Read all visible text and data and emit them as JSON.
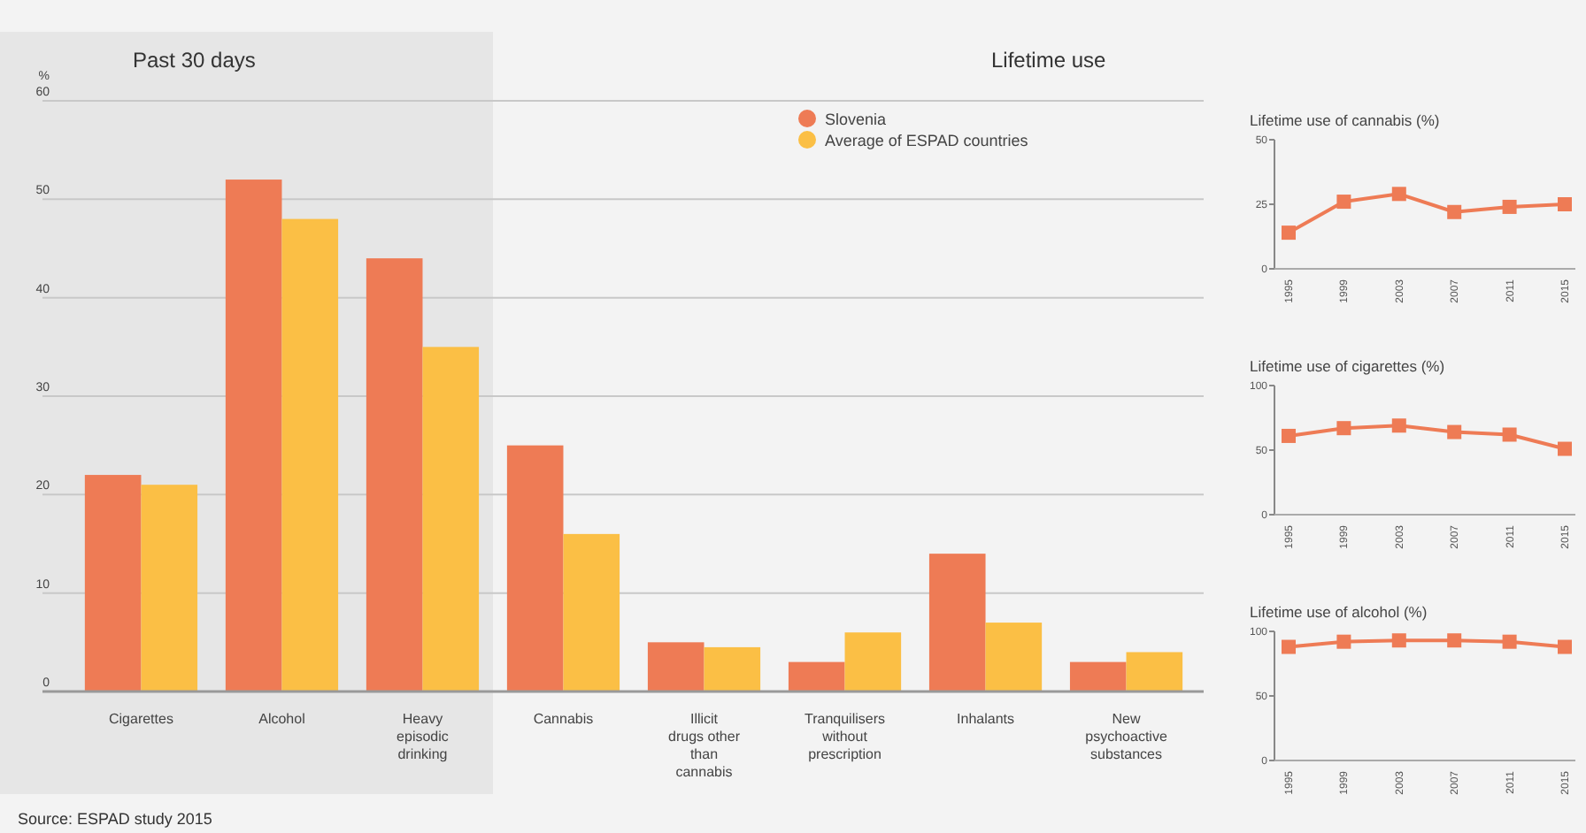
{
  "chart_data": [
    {
      "type": "bar",
      "ylabel": "%",
      "categories": [
        "Cigarettes",
        "Alcohol",
        "Heavy episodic drinking",
        "Cannabis",
        "Illicit drugs other than cannabis",
        "Tranquilisers without prescription",
        "Inhalants",
        "New psychoactive substances"
      ],
      "series": [
        {
          "name": "Slovenia",
          "color": "#ee7b55",
          "values": [
            22,
            52,
            44,
            25,
            5,
            3,
            14,
            3
          ]
        },
        {
          "name": "Average of ESPAD countries",
          "color": "#fbbf45",
          "values": [
            21,
            48,
            35,
            16,
            4.5,
            6,
            7,
            4
          ]
        }
      ],
      "ylim": [
        0,
        60
      ],
      "yticks": [
        0,
        10,
        20,
        30,
        40,
        50,
        60
      ],
      "grid": "y",
      "legend": "top right",
      "annotations": [
        "Past 30 days",
        "Lifetime use",
        "Source: ESPAD study 2015"
      ]
    },
    {
      "type": "line",
      "title": "Lifetime use of cannabis (%)",
      "categories": [
        "1995",
        "1999",
        "2003",
        "2007",
        "2011",
        "2015"
      ],
      "series": [
        {
          "color": "#ee7b55",
          "values": [
            14,
            26,
            29,
            22,
            24,
            25
          ]
        }
      ],
      "ylim": [
        0,
        50
      ],
      "yticks": [
        0,
        25,
        50
      ],
      "marker": "square"
    },
    {
      "type": "line",
      "title": "Lifetime use of cigarettes (%)",
      "categories": [
        "1995",
        "1999",
        "2003",
        "2007",
        "2011",
        "2015"
      ],
      "series": [
        {
          "color": "#ee7b55",
          "values": [
            61,
            67,
            69,
            64,
            62,
            51
          ]
        }
      ],
      "ylim": [
        0,
        100
      ],
      "yticks": [
        0,
        50,
        100
      ],
      "marker": "square"
    },
    {
      "type": "line",
      "title": "Lifetime use of alcohol (%)",
      "categories": [
        "1995",
        "1999",
        "2003",
        "2007",
        "2011",
        "2015"
      ],
      "series": [
        {
          "color": "#ee7b55",
          "values": [
            88,
            92,
            93,
            93,
            92,
            88
          ]
        }
      ],
      "ylim": [
        0,
        100
      ],
      "yticks": [
        0,
        50,
        100
      ],
      "marker": "square"
    }
  ]
}
